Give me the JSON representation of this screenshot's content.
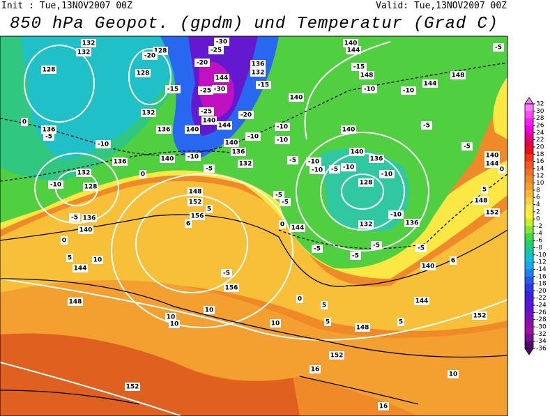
{
  "header": {
    "init": "Init : Tue,13NOV2007 00Z",
    "valid": "Valid: Tue,13NOV2007 00Z",
    "title": "850 hPa Geopot. (gpdm) und Temperatur (Grad C)"
  },
  "colorbar": {
    "ticks": [
      32,
      30,
      28,
      26,
      24,
      22,
      20,
      18,
      16,
      14,
      12,
      10,
      8,
      6,
      4,
      2,
      0,
      -2,
      -4,
      -6,
      -8,
      -10,
      -12,
      -14,
      -16,
      -18,
      -20,
      -22,
      -24,
      -26,
      -28,
      -30,
      -32,
      -34,
      -36
    ],
    "colors": [
      "#ff7cff",
      "#ff4cf8",
      "#ff1ef0",
      "#f000e0",
      "#e00090",
      "#e60050",
      "#ee1010",
      "#f03818",
      "#f05a20",
      "#f07028",
      "#f08a28",
      "#f4a030",
      "#f8b838",
      "#fcd040",
      "#ffe848",
      "#fff030",
      "#c8f028",
      "#80e830",
      "#40dc40",
      "#20d070",
      "#10c8a8",
      "#10c0d8",
      "#18a8f0",
      "#2080f0",
      "#2858f0",
      "#3038e8",
      "#3c20e0",
      "#5018d8",
      "#6410d0",
      "#7810c0",
      "#8c10b0",
      "#a010a0",
      "#781090",
      "#500870"
    ]
  },
  "contour_labels": [
    132,
    132,
    128,
    128,
    128,
    -15,
    132,
    136,
    -10,
    136,
    -5,
    0,
    136,
    -10,
    132,
    128,
    -5,
    136,
    140,
    0,
    140,
    -10,
    -5,
    0,
    148,
    152,
    5,
    156,
    6,
    -20,
    144,
    -25,
    -30,
    -25,
    140,
    144,
    140,
    -20,
    -15,
    136,
    132,
    140,
    -10,
    -10,
    -10,
    140,
    136,
    132,
    -5,
    -10,
    -10,
    -5,
    -10,
    140,
    136,
    -10,
    128,
    -10,
    132,
    136,
    -5,
    -5,
    -5,
    -5,
    144,
    140,
    -10,
    -15,
    148,
    144,
    140,
    144,
    -10,
    -5,
    148,
    -5,
    -5,
    140,
    144,
    0,
    5,
    148,
    152,
    6,
    140,
    144,
    5,
    5,
    5,
    0,
    148,
    152,
    152,
    10,
    10,
    5,
    144,
    148,
    -5,
    156,
    10,
    10,
    10,
    10,
    152,
    16,
    16,
    0,
    -5,
    -5,
    -30,
    -25,
    -20
  ]
}
